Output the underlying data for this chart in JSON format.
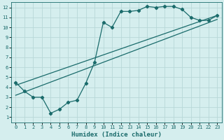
{
  "xlabel": "Humidex (Indice chaleur)",
  "bg_color": "#d5eeee",
  "grid_color": "#b8d8d8",
  "line_color": "#1a6b6b",
  "xlim": [
    -0.5,
    23.5
  ],
  "ylim": [
    0.5,
    12.5
  ],
  "xticks": [
    0,
    1,
    2,
    3,
    4,
    5,
    6,
    7,
    8,
    9,
    10,
    11,
    12,
    13,
    14,
    15,
    16,
    17,
    18,
    19,
    20,
    21,
    22,
    23
  ],
  "yticks": [
    1,
    2,
    3,
    4,
    5,
    6,
    7,
    8,
    9,
    10,
    11,
    12
  ],
  "line1_x": [
    0,
    1,
    2,
    3,
    4,
    5,
    6,
    7,
    8,
    9,
    10,
    11,
    12,
    13,
    14,
    15,
    16,
    17,
    18,
    19,
    20,
    21,
    22,
    23
  ],
  "line1_y": [
    4.5,
    3.6,
    3.0,
    3.0,
    1.4,
    1.8,
    2.5,
    2.7,
    4.4,
    6.5,
    10.5,
    10.0,
    11.6,
    11.6,
    11.7,
    12.1,
    12.0,
    12.1,
    12.1,
    11.8,
    11.0,
    10.7,
    10.7,
    11.2
  ],
  "line2_x": [
    0,
    23
  ],
  "line2_y": [
    3.2,
    10.8
  ],
  "line3_x": [
    0,
    23
  ],
  "line3_y": [
    4.2,
    11.2
  ],
  "marker": "D",
  "marker_size": 2.2,
  "line_width": 0.9,
  "xlabel_fontsize": 6.5,
  "tick_fontsize": 5.0
}
